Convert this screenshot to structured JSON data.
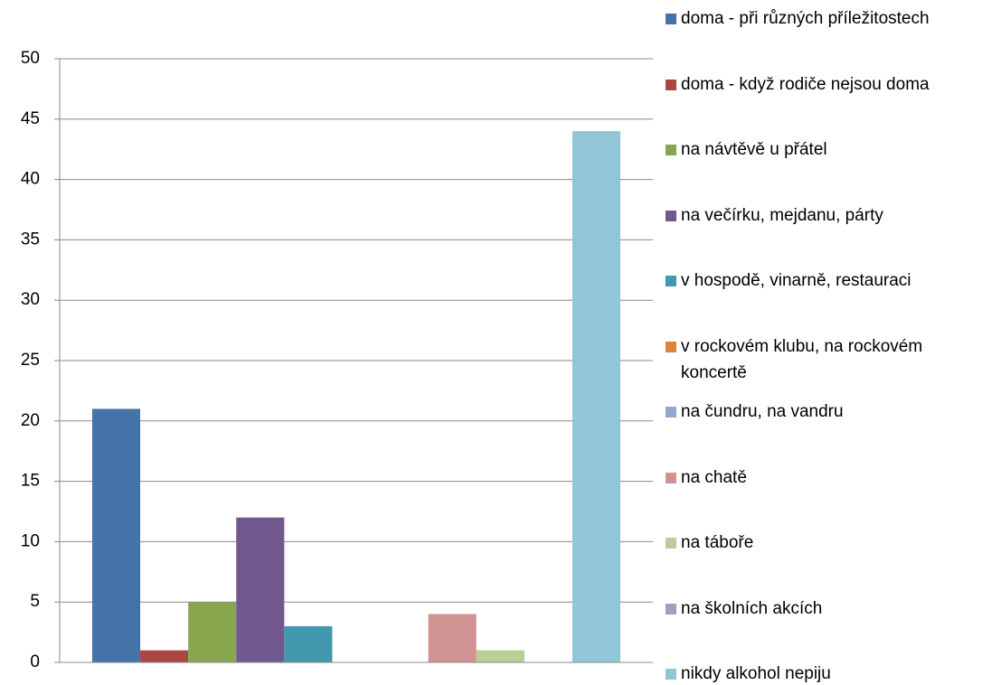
{
  "chart_data": {
    "type": "bar",
    "categories": [
      null
    ],
    "series": [
      {
        "name": "doma - při různých příležitostech",
        "color": "#4572a7",
        "values": [
          21
        ]
      },
      {
        "name": "doma - když rodiče nejsou doma",
        "color": "#aa4643",
        "values": [
          1
        ]
      },
      {
        "name": "na návtěvě u přátel",
        "color": "#89a54e",
        "values": [
          5
        ]
      },
      {
        "name": "na večírku, mejdanu, párty",
        "color": "#71588f",
        "values": [
          12
        ]
      },
      {
        "name": "v hospodě, vinarně, restauraci",
        "color": "#4198af",
        "values": [
          3
        ]
      },
      {
        "name": "v rockovém klubu, na rockovém koncertě",
        "color": "#db843d",
        "values": [
          0
        ]
      },
      {
        "name": "na čundru, na vandru",
        "color": "#93a9cf",
        "values": [
          0
        ]
      },
      {
        "name": "na chatě",
        "color": "#d19392",
        "values": [
          4
        ]
      },
      {
        "name": "na táboře",
        "color": "#b9cd96",
        "values": [
          1
        ]
      },
      {
        "name": "na školních akcích",
        "color": "#a99bbd",
        "values": [
          0
        ]
      },
      {
        "name": "nikdy alkohol nepiju",
        "color": "#92c5d8",
        "values": [
          44
        ]
      }
    ],
    "ylim": [
      0,
      50
    ],
    "yticks": [
      0,
      5,
      10,
      15,
      20,
      25,
      30,
      35,
      40,
      45,
      50
    ],
    "grid": true,
    "legend": "right"
  }
}
